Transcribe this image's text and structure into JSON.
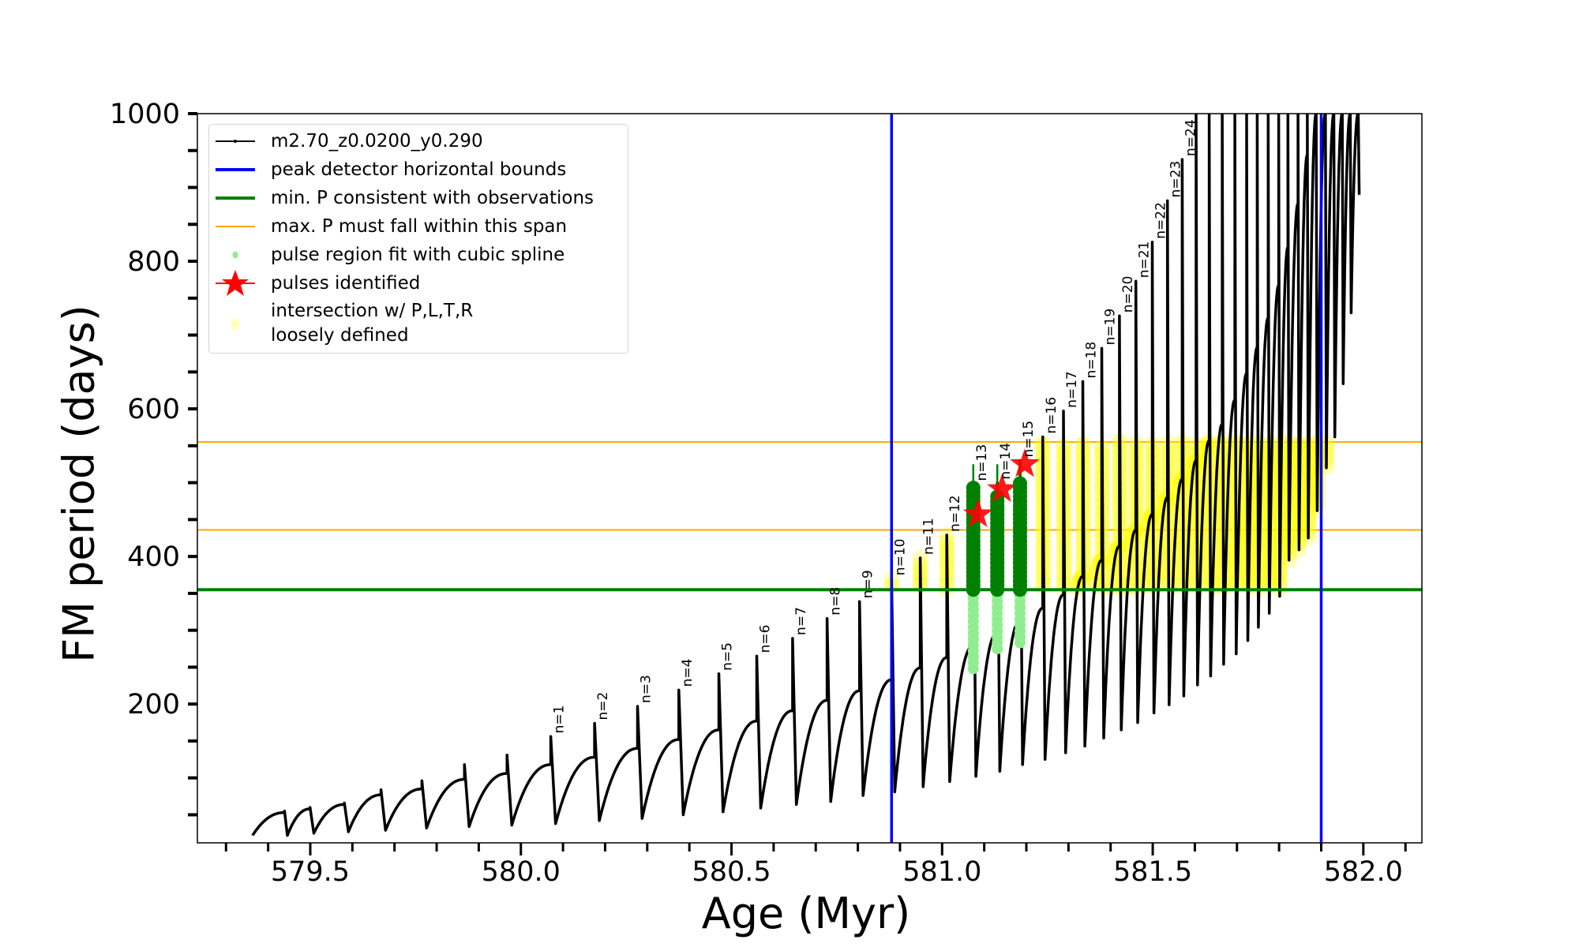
{
  "chart_data": {
    "type": "line",
    "xlabel": "Age (Myr)",
    "ylabel": "FM period (days)",
    "xlim": [
      579.232,
      582.139
    ],
    "ylim": [
      12,
      1000
    ],
    "xticks": [
      579.5,
      580.0,
      580.5,
      581.0,
      581.5,
      582.0
    ],
    "xtick_labels": [
      "579.5",
      "580.0",
      "580.5",
      "581.0",
      "581.5",
      "582.0"
    ],
    "x_minor_step": 0.1,
    "yticks": [
      200,
      400,
      600,
      800,
      1000
    ],
    "ytick_labels": [
      "200",
      "400",
      "600",
      "800",
      "1000"
    ],
    "y_minor_step": 50,
    "grid": false,
    "legend_placement": "upper left",
    "track_start": {
      "age": 579.363,
      "P": 22
    },
    "pulses": [
      {
        "label": "",
        "age": 579.439,
        "pre": 53,
        "top": 55,
        "trough": 22
      },
      {
        "label": "",
        "age": 579.4995,
        "pre": 58,
        "top": 60,
        "trough": 25
      },
      {
        "label": "",
        "age": 579.581,
        "pre": 64,
        "top": 66,
        "trough": 27
      },
      {
        "label": "",
        "age": 579.668,
        "pre": 77,
        "top": 84,
        "trough": 29
      },
      {
        "label": "",
        "age": 579.765,
        "pre": 85,
        "top": 96,
        "trough": 32
      },
      {
        "label": "",
        "age": 579.866,
        "pre": 98,
        "top": 118,
        "trough": 34
      },
      {
        "label": "",
        "age": 579.967,
        "pre": 106,
        "top": 131,
        "trough": 36
      },
      {
        "label": "n=1",
        "age": 580.071,
        "pre": 118,
        "top": 156,
        "trough": 38
      },
      {
        "label": "n=2",
        "age": 580.175,
        "pre": 128,
        "top": 174,
        "trough": 42
      },
      {
        "label": "n=3",
        "age": 580.277,
        "pre": 140,
        "top": 197,
        "trough": 45
      },
      {
        "label": "n=4",
        "age": 580.375,
        "pre": 152,
        "top": 219,
        "trough": 50
      },
      {
        "label": "n=5",
        "age": 580.47,
        "pre": 165,
        "top": 241,
        "trough": 54
      },
      {
        "label": "n=6",
        "age": 580.56,
        "pre": 177,
        "top": 265,
        "trough": 59
      },
      {
        "label": "n=7",
        "age": 580.645,
        "pre": 191,
        "top": 289,
        "trough": 64
      },
      {
        "label": "n=8",
        "age": 580.727,
        "pre": 205,
        "top": 316,
        "trough": 68
      },
      {
        "label": "n=9",
        "age": 580.804,
        "pre": 218,
        "top": 339,
        "trough": 76
      },
      {
        "label": "n=10",
        "age": 580.88,
        "pre": 233,
        "top": 370,
        "trough": 81
      },
      {
        "label": "n=11",
        "age": 580.948,
        "pre": 249,
        "top": 398,
        "trough": 88
      },
      {
        "label": "n=12",
        "age": 581.011,
        "pre": 263,
        "top": 429,
        "trough": 95
      },
      {
        "label": "n=13",
        "age": 581.074,
        "pre": 279,
        "top": 498,
        "trough": 102
      },
      {
        "label": "n=14",
        "age": 581.131,
        "pre": 297,
        "top": 500,
        "trough": 109
      },
      {
        "label": "n=15",
        "age": 581.185,
        "pre": 313,
        "top": 530,
        "trough": 118
      },
      {
        "label": "n=16",
        "age": 581.239,
        "pre": 330,
        "top": 562,
        "trough": 125
      },
      {
        "label": "n=17",
        "age": 581.288,
        "pre": 348,
        "top": 597,
        "trough": 134
      },
      {
        "label": "n=18",
        "age": 581.334,
        "pre": 373,
        "top": 637,
        "trough": 143
      },
      {
        "label": "n=19",
        "age": 581.379,
        "pre": 395,
        "top": 682,
        "trough": 154
      },
      {
        "label": "n=20",
        "age": 581.421,
        "pre": 414,
        "top": 726,
        "trough": 165
      },
      {
        "label": "n=21",
        "age": 581.46,
        "pre": 436,
        "top": 773,
        "trough": 175
      },
      {
        "label": "n=22",
        "age": 581.499,
        "pre": 457,
        "top": 826,
        "trough": 188
      },
      {
        "label": "n=23",
        "age": 581.535,
        "pre": 480,
        "top": 882,
        "trough": 199
      },
      {
        "label": "n=24",
        "age": 581.57,
        "pre": 505,
        "top": 938,
        "trough": 211
      },
      {
        "label": "",
        "age": 581.603,
        "pre": 530,
        "top": 1000,
        "trough": 226
      },
      {
        "label": "",
        "age": 581.634,
        "pre": 557,
        "top": 1000,
        "trough": 238
      },
      {
        "label": "",
        "age": 581.665,
        "pre": 579,
        "top": 1000,
        "trough": 254
      },
      {
        "label": "",
        "age": 581.695,
        "pre": 612,
        "top": 1000,
        "trough": 268
      },
      {
        "label": "",
        "age": 581.723,
        "pre": 648,
        "top": 1000,
        "trough": 286
      },
      {
        "label": "",
        "age": 581.748,
        "pre": 683,
        "top": 1000,
        "trough": 304
      },
      {
        "label": "",
        "age": 581.774,
        "pre": 723,
        "top": 1000,
        "trough": 323
      },
      {
        "label": "",
        "age": 581.799,
        "pre": 767,
        "top": 1000,
        "trough": 346
      },
      {
        "label": "",
        "age": 581.821,
        "pre": 819,
        "top": 1000,
        "trough": 395
      },
      {
        "label": "",
        "age": 581.845,
        "pre": 878,
        "top": 1000,
        "trough": 409
      },
      {
        "label": "",
        "age": 581.867,
        "pre": 944,
        "top": 1000,
        "trough": 425
      },
      {
        "label": "",
        "age": 581.888,
        "pre": 1000,
        "top": 1000,
        "trough": 462
      },
      {
        "label": "",
        "age": 581.91,
        "pre": 1000,
        "top": 1000,
        "trough": 520
      },
      {
        "label": "",
        "age": 581.93,
        "pre": 1000,
        "top": 1000,
        "trough": 562
      },
      {
        "label": "",
        "age": 581.95,
        "pre": 1000,
        "top": 1000,
        "trough": 634
      },
      {
        "label": "",
        "age": 581.969,
        "pre": 1000,
        "top": 1000,
        "trough": 730
      },
      {
        "label": "",
        "age": 581.988,
        "pre": 1000,
        "top": 1000,
        "trough": 890
      }
    ],
    "peak_detector_bounds": [
      580.88,
      581.9
    ],
    "min_P": 355,
    "max_P_span": [
      436,
      555
    ],
    "pulses_identified": [
      {
        "n": 13,
        "age": 581.074,
        "P": 457,
        "fit_range": [
          248,
          498
        ],
        "err_top": 525
      },
      {
        "n": 14,
        "age": 581.131,
        "P": 491,
        "fit_range": [
          275,
          484
        ],
        "err_top": 525
      },
      {
        "n": 15,
        "age": 581.185,
        "P": 525,
        "fit_range": [
          283,
          500
        ],
        "err_top": 530
      }
    ],
    "intersection_region": {
      "P": [
        355,
        556
      ],
      "age": [
        580.87,
        581.915
      ]
    },
    "colors": {
      "track": "#000000",
      "peak_bounds": "#0000ff",
      "min_P": "#008000",
      "max_P": "#ffa500",
      "spline": "#90ee90",
      "pulse_region": "#008000",
      "pulses": "#ff0000",
      "intersection": "#ffff00"
    }
  },
  "legend": {
    "items": [
      {
        "label": "m2.70_z0.0200_y0.290"
      },
      {
        "label": "peak detector horizontal bounds"
      },
      {
        "label": "min. P consistent with observations"
      },
      {
        "label": "max. P must fall within this span"
      },
      {
        "label": "pulse region fit with cubic spline"
      },
      {
        "label": "pulses identified"
      },
      {
        "label": "intersection w/ P,L,T,R",
        "label2": "loosely defined"
      }
    ]
  }
}
